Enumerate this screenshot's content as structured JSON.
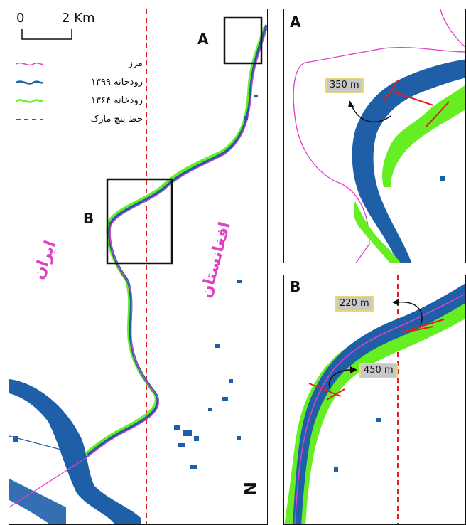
{
  "scale_bar": {
    "zero": "0",
    "distance": "2 Km"
  },
  "legend": {
    "items": [
      {
        "label": "مرز",
        "color": "#e040c8",
        "style": "solid"
      },
      {
        "label": "رودخانه ۱۳۹۹",
        "color": "#1f5fa8",
        "style": "solid"
      },
      {
        "label": "رودخانه ۱۳۶۴",
        "color": "#66ee22",
        "style": "solid"
      },
      {
        "label": "خط بنچ مارک",
        "color": "#e02020",
        "style": "dashed"
      }
    ]
  },
  "countries": {
    "west": "ایران",
    "east": "افغانستان"
  },
  "insets": {
    "a": {
      "label": "A",
      "measurement": "350 m"
    },
    "b": {
      "label": "B",
      "measurements": [
        "220 m",
        "450 m"
      ]
    }
  },
  "north_arrow": {
    "glyph": "N"
  },
  "colors": {
    "border": "#e040c8",
    "river_1399": "#1f5fa8",
    "river_1364": "#66ee22",
    "benchmark": "#e02020"
  }
}
